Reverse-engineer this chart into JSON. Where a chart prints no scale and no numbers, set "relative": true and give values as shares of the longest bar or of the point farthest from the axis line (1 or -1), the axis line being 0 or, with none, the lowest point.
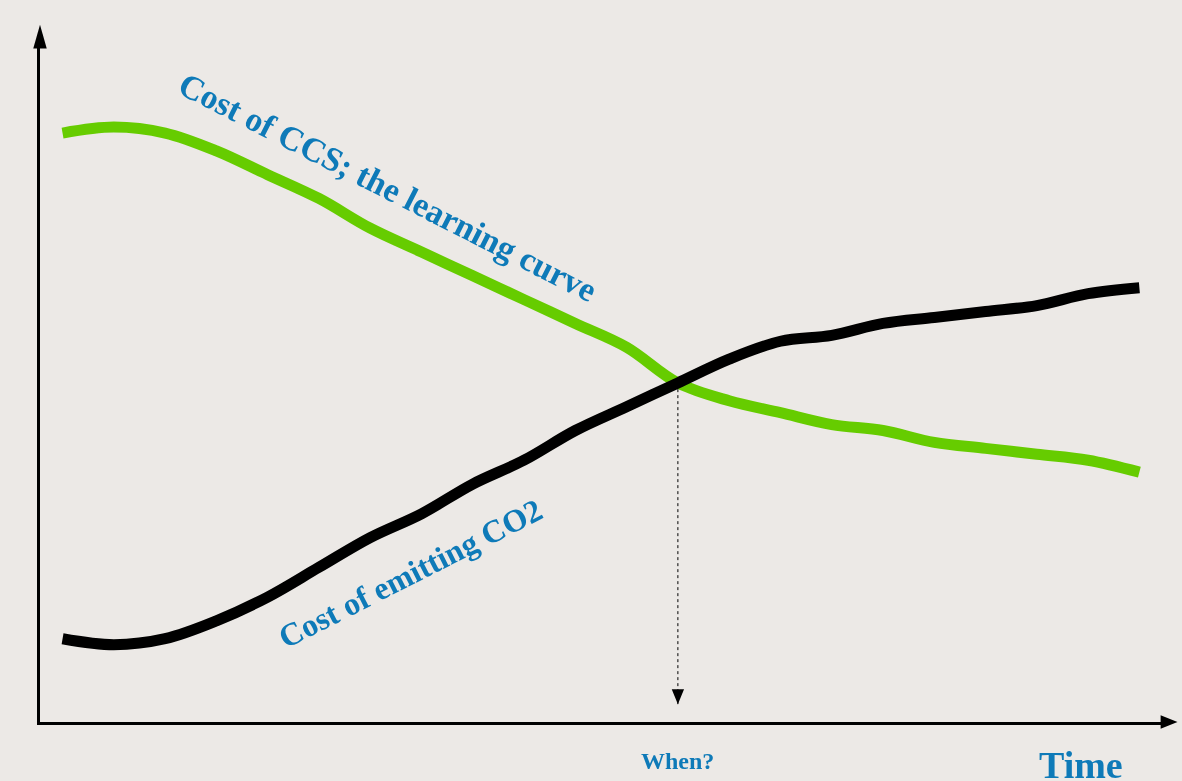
{
  "chart_data": {
    "type": "line",
    "relative": true,
    "xlabel": "Time",
    "grid": false,
    "legend": false,
    "marker": "none",
    "line_style": "solid",
    "categories": [
      null,
      null,
      null,
      null,
      null,
      null,
      null,
      null,
      null,
      null,
      null,
      null,
      null,
      null,
      null,
      null,
      null,
      null,
      null,
      null,
      null,
      null
    ],
    "series": [
      {
        "name": "Cost of CCS; the learning curve",
        "color": "#66cc00",
        "values": [
          0.99,
          1.0,
          0.99,
          0.96,
          0.92,
          0.88,
          0.83,
          0.79,
          0.75,
          0.71,
          0.67,
          0.63,
          0.57,
          0.54,
          0.52,
          0.5,
          0.49,
          0.47,
          0.46,
          0.45,
          0.44,
          0.42
        ]
      },
      {
        "name": "Cost of emitting CO2",
        "color": "#000000",
        "values": [
          0.14,
          0.13,
          0.14,
          0.17,
          0.21,
          0.26,
          0.31,
          0.35,
          0.4,
          0.44,
          0.49,
          0.53,
          0.57,
          0.61,
          0.64,
          0.65,
          0.67,
          0.68,
          0.69,
          0.7,
          0.72,
          0.73
        ]
      }
    ],
    "annotations": [
      "When?"
    ]
  }
}
